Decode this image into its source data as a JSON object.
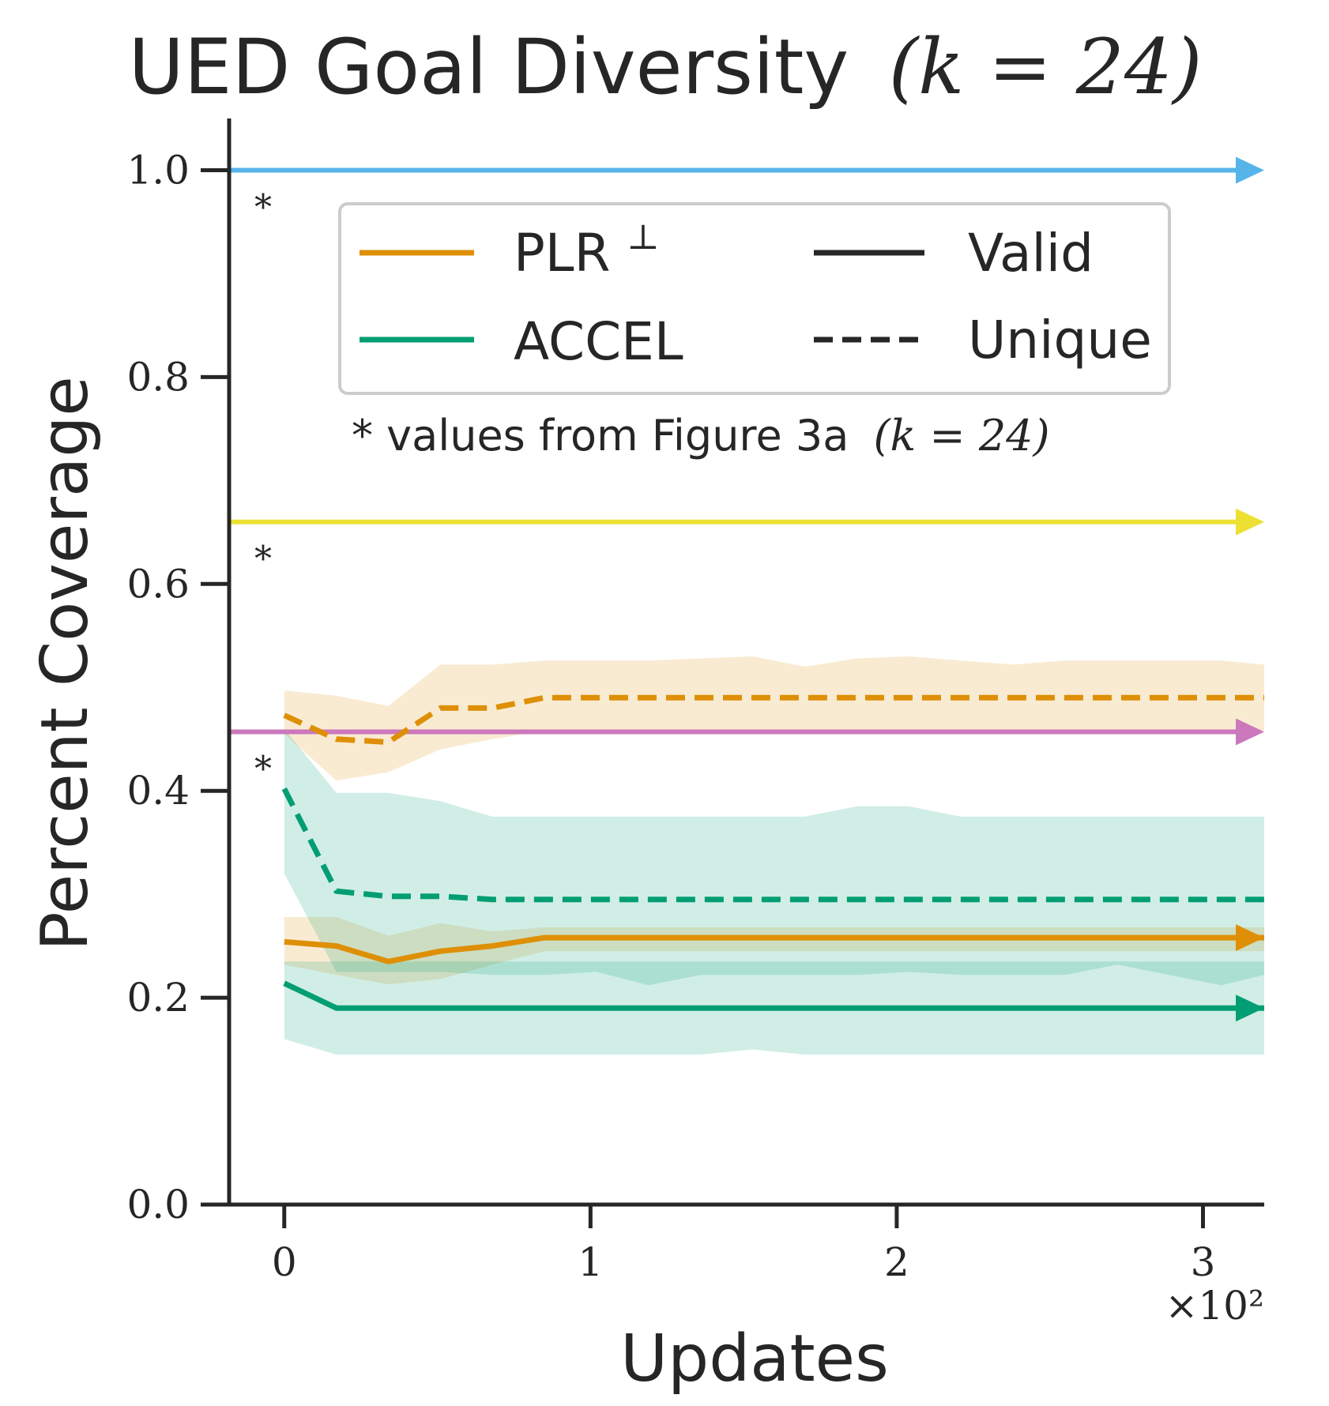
{
  "chart_data": {
    "type": "line",
    "title_main": "UED Goal Diversity",
    "title_math": "(k = 24)",
    "xlabel": "Updates",
    "ylabel": "Percent Coverage",
    "x_multiplier_label": "×10²",
    "xlim": [
      -0.18,
      3.2
    ],
    "ylim": [
      0,
      1.05
    ],
    "x_ticks": [
      0,
      1,
      2,
      3
    ],
    "x_tick_labels": [
      "0",
      "1",
      "2",
      "3"
    ],
    "y_ticks": [
      0.0,
      0.2,
      0.4,
      0.6,
      0.8,
      1.0
    ],
    "y_tick_labels": [
      "0.0",
      "0.2",
      "0.4",
      "0.6",
      "0.8",
      "1.0"
    ],
    "x": [
      0,
      0.17,
      0.34,
      0.51,
      0.68,
      0.85,
      1.02,
      1.19,
      1.36,
      1.53,
      1.7,
      1.87,
      2.04,
      2.21,
      2.38,
      2.55,
      2.72,
      2.89,
      3.06,
      3.2
    ],
    "series": [
      {
        "name": "PLR⊥",
        "style": "Unique",
        "color": "#de8f05",
        "values": [
          0.473,
          0.45,
          0.447,
          0.48,
          0.48,
          0.49,
          0.49,
          0.49,
          0.49,
          0.49,
          0.49,
          0.49,
          0.49,
          0.49,
          0.49,
          0.49,
          0.49,
          0.49,
          0.49,
          0.49
        ],
        "lower": [
          0.455,
          0.41,
          0.418,
          0.44,
          0.45,
          0.458,
          0.458,
          0.458,
          0.458,
          0.458,
          0.458,
          0.458,
          0.458,
          0.458,
          0.458,
          0.458,
          0.458,
          0.458,
          0.458,
          0.458
        ],
        "upper": [
          0.497,
          0.492,
          0.482,
          0.522,
          0.522,
          0.526,
          0.526,
          0.526,
          0.528,
          0.53,
          0.52,
          0.528,
          0.53,
          0.526,
          0.522,
          0.526,
          0.526,
          0.526,
          0.526,
          0.522
        ]
      },
      {
        "name": "PLR⊥",
        "style": "Valid",
        "color": "#de8f05",
        "values": [
          0.254,
          0.25,
          0.235,
          0.245,
          0.25,
          0.258,
          0.258,
          0.258,
          0.258,
          0.258,
          0.258,
          0.258,
          0.258,
          0.258,
          0.258,
          0.258,
          0.258,
          0.258,
          0.258,
          0.258
        ],
        "lower": [
          0.232,
          0.222,
          0.213,
          0.218,
          0.232,
          0.245,
          0.245,
          0.245,
          0.245,
          0.245,
          0.245,
          0.245,
          0.245,
          0.245,
          0.245,
          0.245,
          0.245,
          0.245,
          0.245,
          0.245
        ],
        "upper": [
          0.278,
          0.278,
          0.26,
          0.272,
          0.264,
          0.268,
          0.268,
          0.268,
          0.268,
          0.268,
          0.268,
          0.268,
          0.268,
          0.268,
          0.268,
          0.268,
          0.268,
          0.268,
          0.268,
          0.268
        ]
      },
      {
        "name": "ACCEL",
        "style": "Unique",
        "color": "#029e73",
        "values": [
          0.402,
          0.303,
          0.298,
          0.298,
          0.295,
          0.295,
          0.295,
          0.295,
          0.295,
          0.295,
          0.295,
          0.295,
          0.295,
          0.295,
          0.295,
          0.295,
          0.295,
          0.295,
          0.295,
          0.295
        ],
        "lower": [
          0.32,
          0.225,
          0.225,
          0.225,
          0.222,
          0.222,
          0.225,
          0.212,
          0.222,
          0.222,
          0.222,
          0.222,
          0.225,
          0.222,
          0.222,
          0.222,
          0.232,
          0.222,
          0.212,
          0.222
        ],
        "upper": [
          0.46,
          0.398,
          0.398,
          0.39,
          0.375,
          0.375,
          0.375,
          0.375,
          0.375,
          0.375,
          0.375,
          0.385,
          0.385,
          0.375,
          0.375,
          0.375,
          0.375,
          0.375,
          0.375,
          0.375
        ]
      },
      {
        "name": "ACCEL",
        "style": "Valid",
        "color": "#029e73",
        "values": [
          0.214,
          0.19,
          0.19,
          0.19,
          0.19,
          0.19,
          0.19,
          0.19,
          0.19,
          0.19,
          0.19,
          0.19,
          0.19,
          0.19,
          0.19,
          0.19,
          0.19,
          0.19,
          0.19,
          0.19
        ],
        "lower": [
          0.16,
          0.145,
          0.145,
          0.145,
          0.145,
          0.145,
          0.145,
          0.145,
          0.145,
          0.15,
          0.145,
          0.145,
          0.145,
          0.145,
          0.145,
          0.145,
          0.145,
          0.145,
          0.145,
          0.145
        ],
        "upper": [
          0.235,
          0.235,
          0.235,
          0.235,
          0.235,
          0.235,
          0.235,
          0.235,
          0.235,
          0.235,
          0.235,
          0.235,
          0.235,
          0.235,
          0.235,
          0.235,
          0.235,
          0.235,
          0.235,
          0.235
        ]
      }
    ],
    "reference_lines": [
      {
        "y": 1.0,
        "color": "#56b4e9",
        "marker": "*"
      },
      {
        "y": 0.66,
        "color": "#ece133",
        "marker": "*"
      },
      {
        "y": 0.457,
        "color": "#cc78bc",
        "marker": "*"
      }
    ],
    "legend": {
      "placement": "upper-center",
      "entries": [
        {
          "label": "PLR",
          "superscript": "⊥",
          "color": "#de8f05",
          "dash": "solid"
        },
        {
          "label": "ACCEL",
          "color": "#029e73",
          "dash": "solid"
        },
        {
          "label": "Valid",
          "color": "#262626",
          "dash": "solid"
        },
        {
          "label": "Unique",
          "color": "#262626",
          "dash": "dashed"
        }
      ]
    },
    "note_prefix": "* values from Figure 3a",
    "note_math": "(k = 24)",
    "grid": false
  }
}
